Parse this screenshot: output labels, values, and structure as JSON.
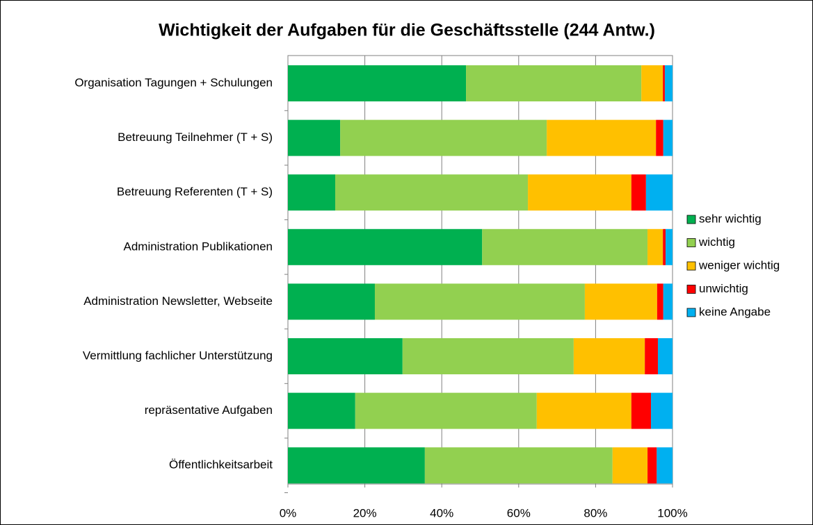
{
  "chart_data": {
    "type": "bar",
    "orientation": "horizontal",
    "stacked": true,
    "title": "Wichtigkeit der Aufgaben für die Geschäftsstelle (244 Antw.)",
    "categories": [
      "Organisation Tagungen + Schulungen",
      "Betreuung Teilnehmer (T + S)",
      "Betreuung Referenten  (T + S)",
      "Administration Publikationen",
      "Administration Newsletter, Webseite",
      "Vermittlung fachlicher Unterstützung",
      "repräsentative Aufgaben",
      "Öffentlichkeitsarbeit"
    ],
    "series": [
      {
        "name": "sehr wichtig",
        "color": "#00b050",
        "values": [
          46.3,
          13.6,
          12.3,
          50.5,
          22.6,
          29.8,
          17.5,
          35.6
        ]
      },
      {
        "name": "wichtig",
        "color": "#92d050",
        "values": [
          45.6,
          53.7,
          50.1,
          43.0,
          54.6,
          44.5,
          47.2,
          48.8
        ]
      },
      {
        "name": "weniger wichtig",
        "color": "#ffc000",
        "values": [
          5.6,
          28.4,
          26.9,
          4.0,
          18.8,
          18.5,
          24.6,
          9.1
        ]
      },
      {
        "name": "unwichtig",
        "color": "#ff0000",
        "values": [
          0.5,
          1.9,
          3.8,
          0.7,
          1.6,
          3.4,
          5.1,
          2.4
        ]
      },
      {
        "name": "keine Angabe",
        "color": "#00b0f0",
        "values": [
          2.0,
          2.4,
          6.9,
          1.8,
          2.4,
          3.8,
          5.6,
          4.1
        ]
      }
    ],
    "xlim": [
      0,
      100
    ],
    "xticks": [
      {
        "value": 0,
        "label": "0%"
      },
      {
        "value": 20,
        "label": "20%"
      },
      {
        "value": 40,
        "label": "40%"
      },
      {
        "value": 60,
        "label": "60%"
      },
      {
        "value": 80,
        "label": "80%"
      },
      {
        "value": 100,
        "label": "100%"
      }
    ],
    "grid": true,
    "legend": "right"
  }
}
